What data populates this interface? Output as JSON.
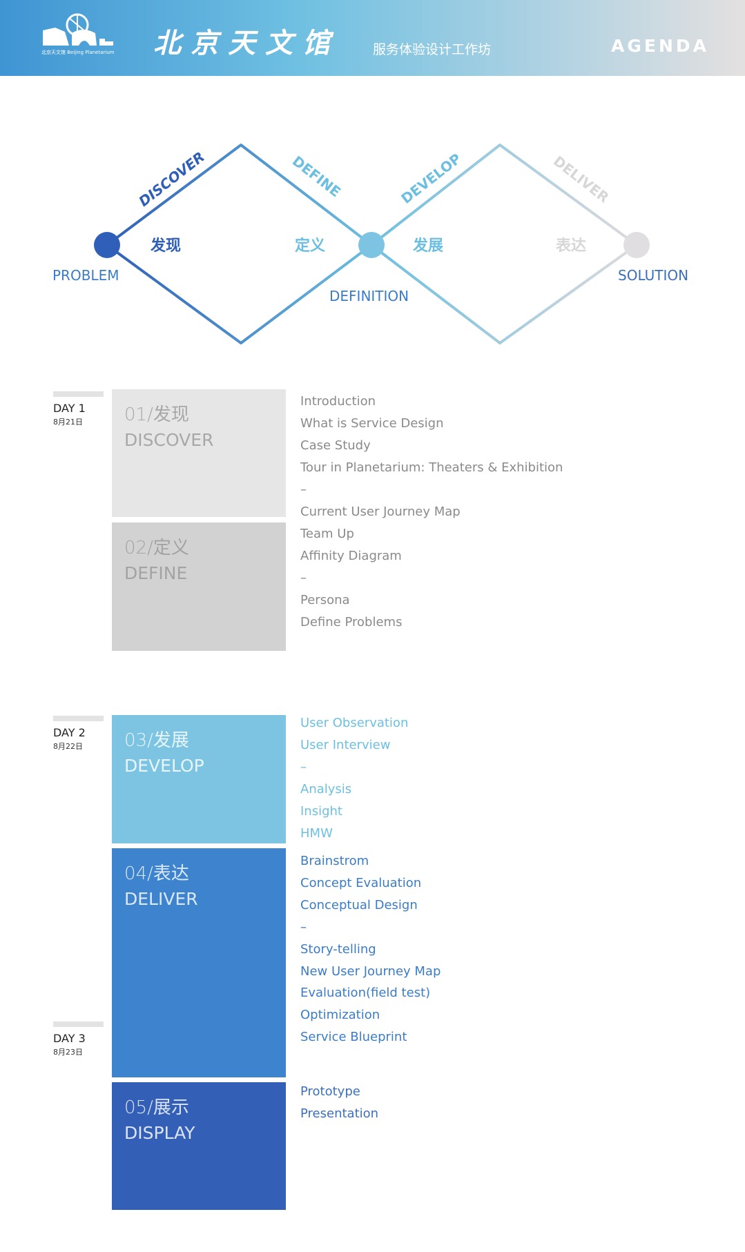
{
  "header": {
    "logo_text": "北京天文馆 Beijing Planetarium",
    "brand": "北京天文馆",
    "subtitle": "服务体验设计工作坊",
    "agenda": "AGENDA",
    "gradient": [
      "#3f95d3",
      "#6fc0e2",
      "#e4e0e0"
    ]
  },
  "diagram": {
    "phases": [
      {
        "en": "DISCOVER",
        "cn": "发现",
        "color": "#2f5fb8"
      },
      {
        "en": "DEFINE",
        "cn": "定义",
        "color": "#6cbfe0"
      },
      {
        "en": "DEVELOP",
        "cn": "发展",
        "color": "#6cbfe0"
      },
      {
        "en": "DELIVER",
        "cn": "表达",
        "color": "#d8d6d8"
      }
    ],
    "nodes": {
      "start": "PROBLEM",
      "middle": "DEFINITION",
      "end": "SOLUTION"
    }
  },
  "days": [
    {
      "label": "DAY 1",
      "date": "8月21日"
    },
    {
      "label": "DAY 2",
      "date": "8月22日"
    },
    {
      "label": "DAY 3",
      "date": "8月23日"
    }
  ],
  "blocks": [
    {
      "num": "01/发现",
      "name": "DISCOVER",
      "color": "#e6e6e6",
      "text_color": "#a8a8a8",
      "items": [
        "Introduction",
        "What is Service Design",
        "Case Study",
        "Tour in Planetarium: Theaters & Exhibition",
        "–",
        "Current User Journey Map"
      ],
      "items_color": "#8a8a8a"
    },
    {
      "num": "02/定义",
      "name": "DEFINE",
      "color": "#d3d2d3",
      "text_color": "#a3a3a3",
      "items": [
        "Team Up",
        "Affinity Diagram",
        "–",
        "Persona",
        "Define Problems"
      ],
      "items_color": "#8a8a8a"
    },
    {
      "num": "03/发展",
      "name": "DEVELOP",
      "color": "#7cc4e2",
      "text_color": "#e8f5fb",
      "items": [
        "User Observation",
        "User Interview",
        "–",
        "Analysis",
        "Insight",
        "HMW"
      ],
      "items_color": "#6cc0e0"
    },
    {
      "num": "04/表达",
      "name": "DELIVER",
      "color": "#3d83cd",
      "text_color": "#dbe9f7",
      "items": [
        "Brainstrom",
        "Concept Evaluation",
        "Conceptual Design",
        "–",
        "Story-telling",
        "New User Journey Map",
        "Evaluation(field test)",
        "Optimization",
        "Service Blueprint"
      ],
      "items_color": "#3b7cc9"
    },
    {
      "num": "05/展示",
      "name": "DISPLAY",
      "color": "#335fb6",
      "text_color": "#dbe4f5",
      "items": [
        "Prototype",
        "Presentation"
      ],
      "items_color": "#3b6fc0"
    }
  ]
}
